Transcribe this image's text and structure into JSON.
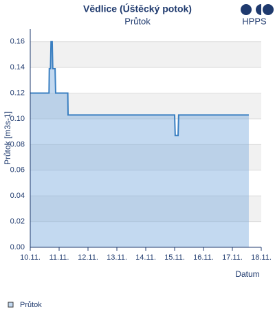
{
  "logo": "HPPS",
  "chart_data": {
    "type": "line",
    "title": "Vědlice (Úštěcký potok)",
    "subtitle": "Průtok",
    "y_label": "Průtok [m3s-1]",
    "x_label": "Datum",
    "x": [
      10.0,
      10.65,
      10.66,
      10.7,
      10.72,
      10.76,
      10.78,
      10.86,
      10.88,
      11.3,
      11.31,
      15.0,
      15.02,
      15.12,
      15.14,
      17.57
    ],
    "series": [
      {
        "name": "Průtok",
        "color": "#3a7fc1",
        "fill": "rgba(122,170,222,0.45)",
        "values": [
          0.12,
          0.12,
          0.139,
          0.139,
          0.16,
          0.16,
          0.139,
          0.139,
          0.12,
          0.12,
          0.103,
          0.103,
          0.087,
          0.087,
          0.103,
          0.103
        ]
      }
    ],
    "xlim": [
      10,
      18
    ],
    "xticks": [
      {
        "value": 10,
        "label": "10.11."
      },
      {
        "value": 11,
        "label": "11.11."
      },
      {
        "value": 12,
        "label": "12.11."
      },
      {
        "value": 13,
        "label": "13.11."
      },
      {
        "value": 14,
        "label": "14.11."
      },
      {
        "value": 15,
        "label": "15.11."
      },
      {
        "value": 16,
        "label": "16.11."
      },
      {
        "value": 17,
        "label": "17.11."
      },
      {
        "value": 18,
        "label": "18.11."
      }
    ],
    "ylim": [
      0,
      0.17
    ],
    "yticks": [
      {
        "value": 0,
        "label": "0.00"
      },
      0.02,
      0.04,
      0.06,
      0.08,
      {
        "value": 0.1,
        "label": "0.10"
      },
      0.12,
      0.14,
      0.16
    ],
    "grid": true,
    "legend": "bottom-left"
  }
}
